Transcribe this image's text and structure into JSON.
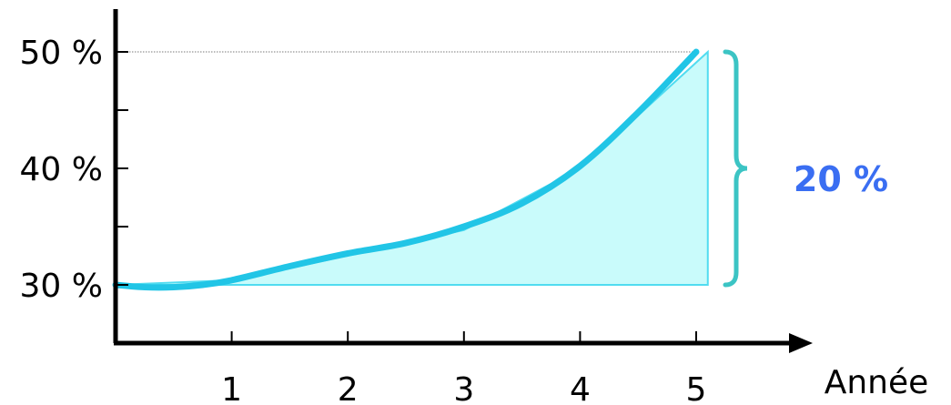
{
  "chart_data": {
    "type": "line",
    "xlabel": "Année",
    "x_ticks": [
      "1",
      "2",
      "3",
      "4",
      "5"
    ],
    "y_ticks": [
      "30 %",
      "40 %",
      "50 %"
    ],
    "y_values": [
      30,
      40,
      50
    ],
    "ylim": [
      25,
      55
    ],
    "xlim": [
      0,
      6
    ],
    "grid": false,
    "series": [
      {
        "x": [
          0,
          0.25,
          0.5,
          0.75,
          1,
          1.5,
          2,
          2.5,
          3,
          3.5,
          4,
          4.5,
          5
        ],
        "y": [
          30.0,
          29.8,
          29.8,
          30.0,
          30.4,
          31.6,
          32.7,
          33.6,
          35.0,
          37.0,
          40.2,
          44.8,
          50.0
        ]
      }
    ],
    "shaded_area": {
      "x": [
        0,
        1,
        2,
        3,
        4,
        5.1,
        5.1
      ],
      "y": [
        30.0,
        30.4,
        32.5,
        34.7,
        40.0,
        50.0,
        30.0
      ]
    },
    "reference_line_y": 50,
    "annotation": {
      "text": "20 %",
      "from": 30,
      "to": 50
    },
    "colors": {
      "line": "#21c5e6",
      "area_fill": "#c9fbfb",
      "area_stroke": "#51dcf0",
      "brace": "#3cc4c4",
      "annotation": "#3a6ef2",
      "axis": "#000000"
    }
  }
}
